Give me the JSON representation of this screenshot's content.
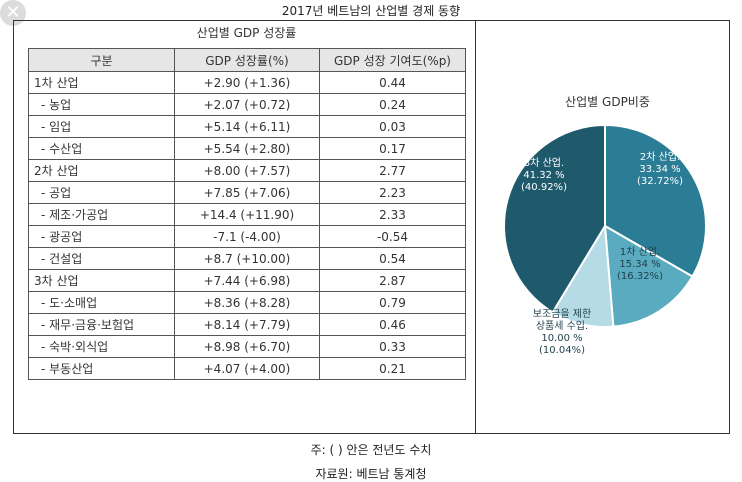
{
  "page_title": "2017년 베트남의 산업별 경제 동향",
  "close_icon_glyph": "✕",
  "table": {
    "caption": "산업별 GDP 성장률",
    "headers": [
      "구분",
      "GDP 성장률(%)",
      "GDP 성장 기여도(%p)"
    ],
    "rows": [
      {
        "label": "1차 산업",
        "growth": "+2.90 (+1.36)",
        "contribution": "0.44",
        "level": 0
      },
      {
        "label": "- 농업",
        "growth": "+2.07 (+0.72)",
        "contribution": "0.24",
        "level": 1
      },
      {
        "label": "- 임업",
        "growth": "+5.14 (+6.11)",
        "contribution": "0.03",
        "level": 1
      },
      {
        "label": "- 수산업",
        "growth": "+5.54 (+2.80)",
        "contribution": "0.17",
        "level": 1
      },
      {
        "label": "2차 산업",
        "growth": "+8.00 (+7.57)",
        "contribution": "2.77",
        "level": 0
      },
      {
        "label": "- 공업",
        "growth": "+7.85 (+7.06)",
        "contribution": "2.23",
        "level": 1
      },
      {
        "label": "- 제조·가공업",
        "growth": "+14.4 (+11.90)",
        "contribution": "2.33",
        "level": 1
      },
      {
        "label": "- 광공업",
        "growth": "-7.1 (-4.00)",
        "contribution": "-0.54",
        "level": 1
      },
      {
        "label": "- 건설업",
        "growth": "+8.7 (+10.00)",
        "contribution": "0.54",
        "level": 1
      },
      {
        "label": "3차 산업",
        "growth": "+7.44 (+6.98)",
        "contribution": "2.87",
        "level": 0
      },
      {
        "label": "- 도·소매업",
        "growth": "+8.36 (+8.28)",
        "contribution": "0.79",
        "level": 1
      },
      {
        "label": "- 재무·금융·보험업",
        "growth": "+8.14 (+7.79)",
        "contribution": "0.46",
        "level": 1
      },
      {
        "label": "- 숙박·외식업",
        "growth": "+8.98 (+6.70)",
        "contribution": "0.33",
        "level": 1
      },
      {
        "label": "- 부동산업",
        "growth": "+4.07 (+4.00)",
        "contribution": "0.21",
        "level": 1
      }
    ]
  },
  "notes": {
    "footnote": "주: (    ) 안은 전년도 수치",
    "source": "자료원: 베트남 통계청"
  },
  "chart_data": {
    "type": "pie",
    "title": "산업별 GDP비중",
    "slices": [
      {
        "name": "2차 산업",
        "value": 33.34,
        "prev": 32.72,
        "color": "#2b7d96",
        "label_lines": [
          "2차 산업.",
          "33.34 %",
          "(32.72%)"
        ]
      },
      {
        "name": "1차 산업",
        "value": 15.34,
        "prev": 16.32,
        "color": "#5aabbf",
        "label_lines": [
          "1차 산업.",
          "15.34 %",
          "(16.32%)"
        ]
      },
      {
        "name": "보조금을 제한 상품세 수입",
        "value": 10.0,
        "prev": 10.04,
        "color": "#b5dbe6",
        "label_lines": [
          "보조금을 제한",
          "상품세 수입.",
          "10.00 %",
          "(10.04%)"
        ]
      },
      {
        "name": "3차 산업",
        "value": 41.32,
        "prev": 40.92,
        "color": "#1f5a6c",
        "label_lines": [
          "3차 산업.",
          "41.32 %",
          "(40.92%)"
        ]
      }
    ]
  }
}
